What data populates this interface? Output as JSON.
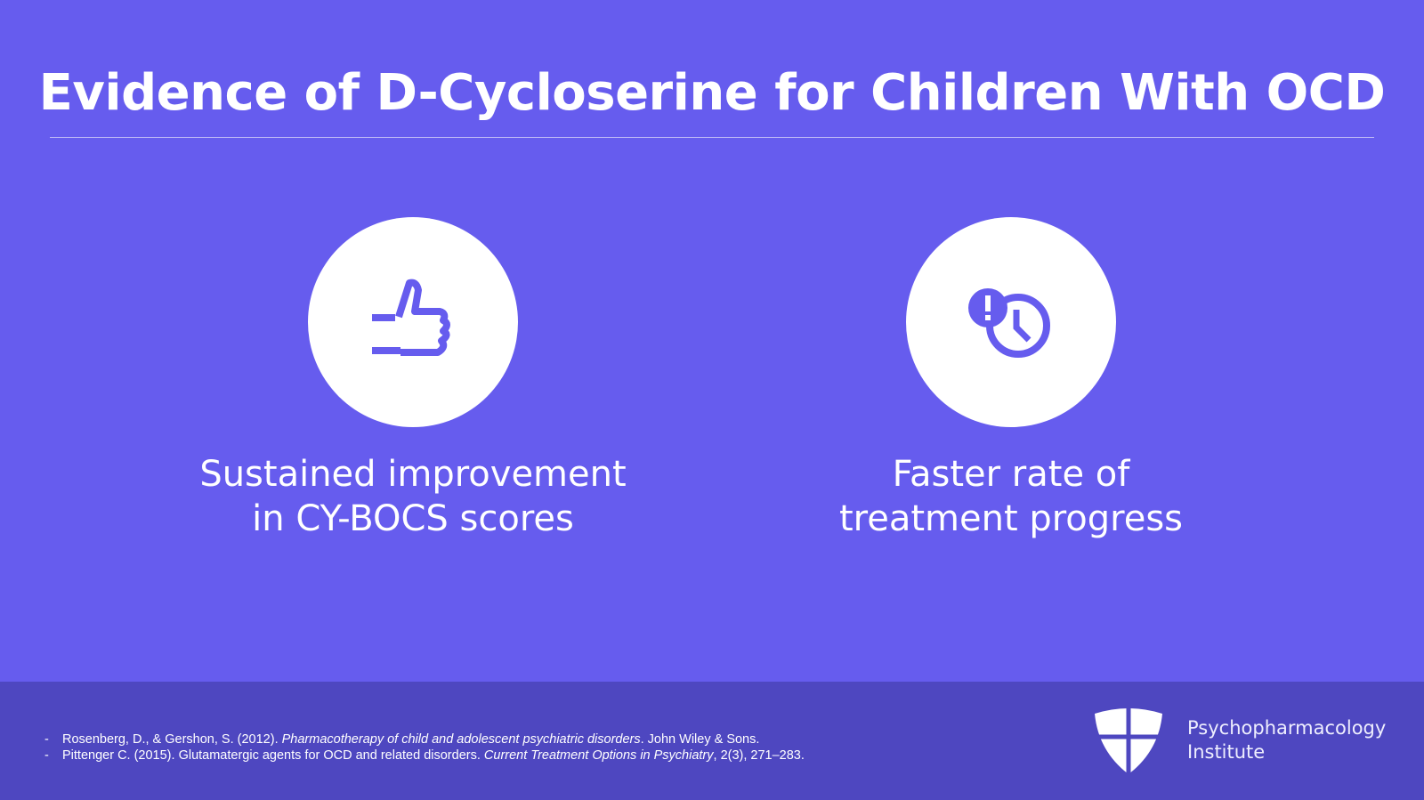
{
  "title": "Evidence of D-Cycloserine for Children With OCD",
  "cards": [
    {
      "icon": "thumbs-up-icon",
      "line1": "Sustained improvement",
      "line2": "in CY-BOCS scores"
    },
    {
      "icon": "clock-alert-icon",
      "line1": "Faster rate of",
      "line2": "treatment progress"
    }
  ],
  "references": [
    {
      "dash": "-",
      "pre": "Rosenberg, D., & Gershon, S. (2012). ",
      "italic": "Pharmacotherapy of child and adolescent psychiatric disorders",
      "post": ". John Wiley & Sons."
    },
    {
      "dash": "-",
      "pre": "Pittenger C. (2015). Glutamatergic agents for OCD and related disorders. ",
      "italic": "Current Treatment Options in Psychiatry",
      "post": ", 2(3), 271–283."
    }
  ],
  "brand": {
    "line1": "Psychopharmacology",
    "line2": "Institute"
  },
  "colors": {
    "background": "#665cee",
    "footer": "#4e47c0",
    "accent": "#665cee"
  }
}
